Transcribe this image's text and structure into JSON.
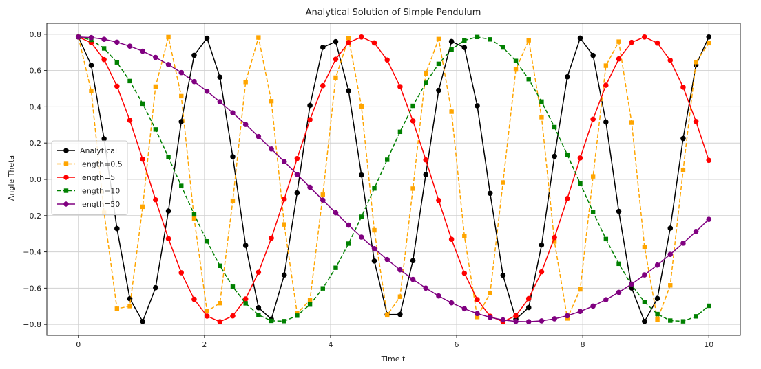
{
  "chart_data": {
    "type": "line",
    "title": "Analytical Solution of Simple Pendulum",
    "xlabel": "Time t",
    "ylabel": "Angle Theta",
    "xlim": [
      -0.5,
      10.5
    ],
    "ylim": [
      -0.86,
      0.86
    ],
    "xticks": [
      0,
      2,
      4,
      6,
      8,
      10
    ],
    "xtick_labels": [
      "0",
      "2",
      "4",
      "6",
      "8",
      "10"
    ],
    "yticks": [
      -0.8,
      -0.6,
      -0.4,
      -0.2,
      0.0,
      0.2,
      0.4,
      0.6,
      0.8
    ],
    "ytick_labels": [
      "−0.8",
      "−0.6",
      "−0.4",
      "−0.2",
      "0.0",
      "0.2",
      "0.4",
      "0.6",
      "0.8"
    ],
    "grid": true,
    "legend_position": "center-left",
    "series": [
      {
        "name": "Analytical",
        "color": "#000000",
        "dash": "solid",
        "marker": "circle",
        "model": "cos",
        "amplitude": 0.785,
        "period": 2.0,
        "t_end": 10,
        "t_step": 0.2041
      },
      {
        "name": "length=0.5",
        "color": "#ffa500",
        "dash": "dashed",
        "marker": "square",
        "model": "cos",
        "amplitude": 0.785,
        "period": 1.419,
        "t_end": 10,
        "t_step": 0.2041
      },
      {
        "name": "length=5",
        "color": "#ff0000",
        "dash": "solid",
        "marker": "circle",
        "model": "cos",
        "amplitude": 0.785,
        "period": 4.487,
        "t_end": 10,
        "t_step": 0.2041
      },
      {
        "name": "length=10",
        "color": "#008000",
        "dash": "dashed",
        "marker": "square",
        "model": "cos",
        "amplitude": 0.785,
        "period": 6.345,
        "t_end": 10,
        "t_step": 0.2041
      },
      {
        "name": "length=50",
        "color": "#800080",
        "dash": "solid",
        "marker": "circle",
        "model": "cos",
        "amplitude": 0.785,
        "period": 14.19,
        "t_end": 10,
        "t_step": 0.2041
      }
    ]
  }
}
